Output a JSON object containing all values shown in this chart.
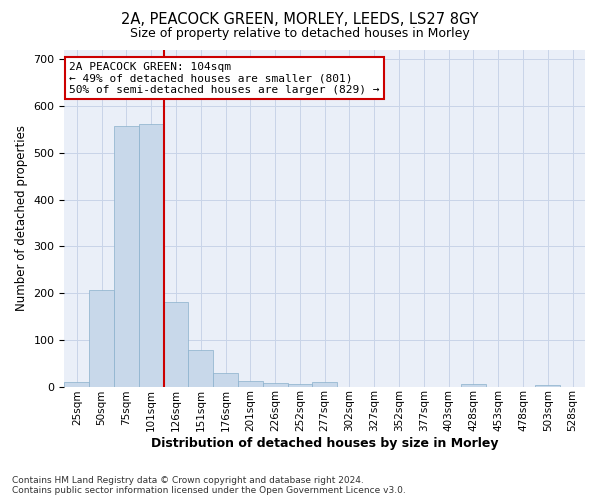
{
  "title1": "2A, PEACOCK GREEN, MORLEY, LEEDS, LS27 8GY",
  "title2": "Size of property relative to detached houses in Morley",
  "xlabel": "Distribution of detached houses by size in Morley",
  "ylabel": "Number of detached properties",
  "bar_labels": [
    "25sqm",
    "50sqm",
    "75sqm",
    "101sqm",
    "126sqm",
    "151sqm",
    "176sqm",
    "201sqm",
    "226sqm",
    "252sqm",
    "277sqm",
    "302sqm",
    "327sqm",
    "352sqm",
    "377sqm",
    "403sqm",
    "428sqm",
    "453sqm",
    "478sqm",
    "503sqm",
    "528sqm"
  ],
  "bar_values": [
    10,
    207,
    558,
    562,
    180,
    78,
    30,
    12,
    7,
    5,
    10,
    0,
    0,
    0,
    0,
    0,
    5,
    0,
    0,
    3,
    0
  ],
  "bar_color": "#c8d8ea",
  "bar_edge_color": "#8ab0cc",
  "vline_x_idx": 3,
  "vline_color": "#cc0000",
  "annotation_text": "2A PEACOCK GREEN: 104sqm\n← 49% of detached houses are smaller (801)\n50% of semi-detached houses are larger (829) →",
  "annotation_box_color": "white",
  "annotation_box_edge_color": "#cc0000",
  "ylim": [
    0,
    720
  ],
  "yticks": [
    0,
    100,
    200,
    300,
    400,
    500,
    600,
    700
  ],
  "grid_color": "#c8d4e8",
  "bg_color": "#eaeff8",
  "footnote": "Contains HM Land Registry data © Crown copyright and database right 2024.\nContains public sector information licensed under the Open Government Licence v3.0.",
  "bin_width": 25,
  "n_bars": 21
}
